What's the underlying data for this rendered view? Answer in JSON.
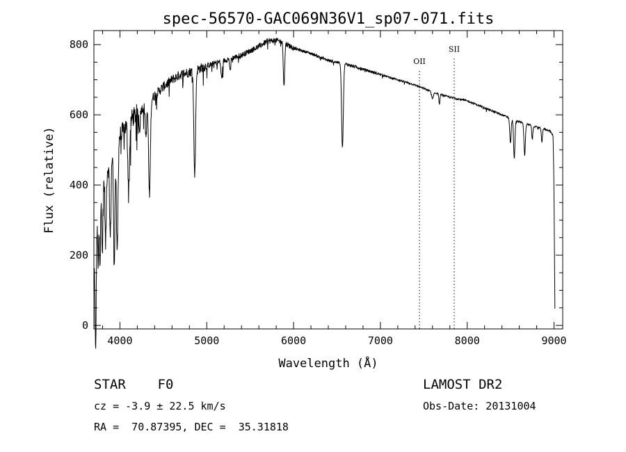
{
  "chart_data": {
    "type": "line",
    "title": "spec-56570-GAC069N36V1_sp07-071.fits",
    "xlabel": "Wavelength (Å)",
    "ylabel": "Flux (relative)",
    "xlim": [
      3700,
      9100
    ],
    "ylim": [
      -10,
      840
    ],
    "x_ticks": [
      4000,
      5000,
      6000,
      7000,
      8000,
      9000
    ],
    "y_ticks": [
      0,
      200,
      400,
      600,
      800
    ],
    "grid": false,
    "legend": "none",
    "line_color": "#000000",
    "continuum": [
      [
        3700,
        150
      ],
      [
        3750,
        330
      ],
      [
        3800,
        400
      ],
      [
        3850,
        440
      ],
      [
        3900,
        480
      ],
      [
        3950,
        510
      ],
      [
        4000,
        540
      ],
      [
        4100,
        580
      ],
      [
        4200,
        605
      ],
      [
        4300,
        628
      ],
      [
        4400,
        655
      ],
      [
        4500,
        680
      ],
      [
        4600,
        700
      ],
      [
        4700,
        715
      ],
      [
        4800,
        722
      ],
      [
        4900,
        730
      ],
      [
        5000,
        740
      ],
      [
        5200,
        755
      ],
      [
        5400,
        770
      ],
      [
        5600,
        795
      ],
      [
        5700,
        810
      ],
      [
        5800,
        812
      ],
      [
        5900,
        805
      ],
      [
        6000,
        790
      ],
      [
        6200,
        775
      ],
      [
        6400,
        755
      ],
      [
        6600,
        745
      ],
      [
        6800,
        730
      ],
      [
        7000,
        715
      ],
      [
        7200,
        700
      ],
      [
        7400,
        685
      ],
      [
        7600,
        665
      ],
      [
        7800,
        650
      ],
      [
        8000,
        640
      ],
      [
        8200,
        620
      ],
      [
        8400,
        600
      ],
      [
        8600,
        580
      ],
      [
        8800,
        565
      ],
      [
        8950,
        555
      ],
      [
        8990,
        540
      ],
      [
        9000,
        380
      ],
      [
        9010,
        50
      ]
    ],
    "absorption_lines": [
      {
        "x": 3720,
        "depth": 300,
        "width": 6
      },
      {
        "x": 3750,
        "depth": 150,
        "width": 6
      },
      {
        "x": 3770,
        "depth": 200,
        "width": 6
      },
      {
        "x": 3798,
        "depth": 180,
        "width": 6
      },
      {
        "x": 3835,
        "depth": 200,
        "width": 7
      },
      {
        "x": 3889,
        "depth": 220,
        "width": 8
      },
      {
        "x": 3934,
        "depth": 320,
        "width": 8
      },
      {
        "x": 3968,
        "depth": 320,
        "width": 9
      },
      {
        "x": 4101,
        "depth": 190,
        "width": 10
      },
      {
        "x": 4226,
        "depth": 60,
        "width": 6
      },
      {
        "x": 4300,
        "depth": 90,
        "width": 8
      },
      {
        "x": 4340,
        "depth": 270,
        "width": 10
      },
      {
        "x": 4861,
        "depth": 300,
        "width": 10
      },
      {
        "x": 5172,
        "depth": 50,
        "width": 8
      },
      {
        "x": 5270,
        "depth": 40,
        "width": 6
      },
      {
        "x": 5890,
        "depth": 120,
        "width": 8
      },
      {
        "x": 6563,
        "depth": 240,
        "width": 10
      },
      {
        "x": 7600,
        "depth": 20,
        "width": 10
      },
      {
        "x": 7680,
        "depth": 30,
        "width": 6
      },
      {
        "x": 8498,
        "depth": 70,
        "width": 8
      },
      {
        "x": 8542,
        "depth": 110,
        "width": 8
      },
      {
        "x": 8662,
        "depth": 90,
        "width": 8
      },
      {
        "x": 8750,
        "depth": 40,
        "width": 6
      },
      {
        "x": 8860,
        "depth": 40,
        "width": 6
      }
    ],
    "annotations": [
      {
        "label": "OII",
        "x": 7450,
        "label_y": 745
      },
      {
        "label": "SII",
        "x": 7850,
        "label_y": 780
      }
    ]
  },
  "info": {
    "object": "STAR    F0",
    "cz": "cz = -3.9 ± 22.5 km/s",
    "coords": "RA =  70.87395, DEC =  35.31818",
    "survey": "LAMOST DR2",
    "obs_date": "Obs-Date: 20131004"
  }
}
